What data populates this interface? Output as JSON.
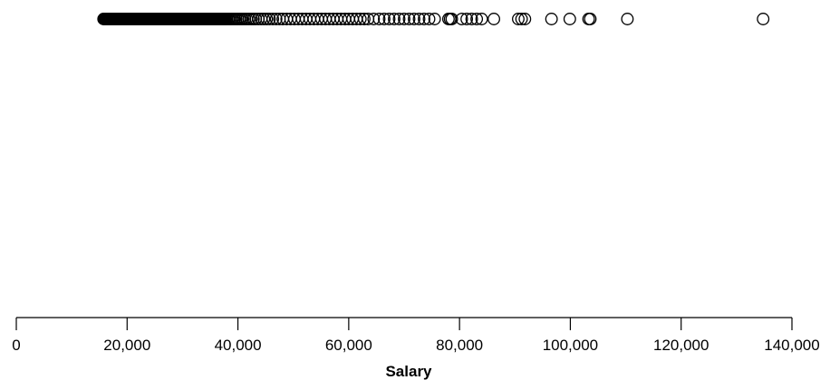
{
  "chart_data": {
    "type": "scatter",
    "title": "",
    "xlabel": "Salary",
    "ylabel": "",
    "xlim": [
      0,
      140000
    ],
    "x_ticks": [
      0,
      20000,
      40000,
      60000,
      80000,
      100000,
      120000,
      140000
    ],
    "x_tick_labels": [
      "0",
      "20,000",
      "40,000",
      "60,000",
      "80,000",
      "100,000",
      "120,000",
      "140,000"
    ],
    "grid": false,
    "legend": "none",
    "marker": "open-circle",
    "colors": {
      "marker_stroke": "#000000",
      "axis": "#000000"
    },
    "series": [
      {
        "x": [
          15750,
          15900,
          16050,
          16200,
          16350,
          16500,
          16650,
          16800,
          16950,
          17100,
          17250,
          17400,
          17550,
          17700,
          17850,
          18000,
          18150,
          18300,
          18450,
          18600,
          18750,
          18900,
          19050,
          19200,
          19350,
          19500,
          19650,
          19800,
          19950,
          20100,
          20250,
          20400,
          20550,
          20700,
          20850,
          21000,
          21150,
          21300,
          21450,
          21600,
          21750,
          21900,
          22050,
          22200,
          22350,
          22500,
          22650,
          22800,
          22950,
          23100,
          23250,
          23400,
          23550,
          23700,
          23850,
          24000,
          24150,
          24300,
          24450,
          24600,
          24750,
          24900,
          25050,
          25200,
          25350,
          25500,
          25650,
          25800,
          25950,
          26100,
          26250,
          26400,
          26550,
          26700,
          26850,
          27000,
          27150,
          27300,
          27450,
          27600,
          27750,
          27900,
          28050,
          28200,
          28350,
          28500,
          28650,
          28800,
          28950,
          29100,
          29250,
          29400,
          29550,
          29700,
          29850,
          30000,
          30150,
          30300,
          30450,
          30600,
          30750,
          30900,
          31050,
          31200,
          31350,
          31500,
          31650,
          31800,
          31950,
          32100,
          32250,
          32400,
          32550,
          32700,
          32850,
          33000,
          33150,
          33300,
          33450,
          33600,
          33750,
          33900,
          34050,
          34200,
          34350,
          34500,
          34650,
          34800,
          34950,
          35100,
          35250,
          35400,
          35550,
          35700,
          35850,
          36000,
          36150,
          36300,
          36450,
          36600,
          36750,
          36900,
          37050,
          37200,
          37350,
          37500,
          37650,
          37800,
          38000,
          38250,
          38500,
          38800,
          39100,
          39400,
          39700,
          40000,
          40300,
          40600,
          40900,
          41250,
          41600,
          42000,
          42400,
          42800,
          43200,
          43700,
          44200,
          44700,
          45200,
          45700,
          46300,
          46900,
          47500,
          48100,
          48800,
          49500,
          50200,
          50900,
          51600,
          52300,
          53000,
          53700,
          54400,
          55100,
          55800,
          56500,
          57200,
          57900,
          58600,
          59300,
          60000,
          60700,
          61400,
          62100,
          62800,
          63500,
          64500,
          65500,
          66400,
          67300,
          68200,
          69100,
          70000,
          70900,
          71800,
          72700,
          73600,
          74500,
          75500,
          78000,
          78300,
          78600,
          80400,
          81300,
          82200,
          83100,
          84000,
          86200,
          90600,
          91200,
          91800,
          96600,
          99900,
          103300,
          103600,
          110300,
          134800
        ],
        "y": [
          0,
          0,
          0,
          0,
          0,
          0,
          0,
          0,
          0,
          0,
          0,
          0,
          0,
          0,
          0,
          0,
          0,
          0,
          0,
          0,
          0,
          0,
          0,
          0,
          0,
          0,
          0,
          0,
          0,
          0,
          0,
          0,
          0,
          0,
          0,
          0,
          0,
          0,
          0,
          0,
          0,
          0,
          0,
          0,
          0,
          0,
          0,
          0,
          0,
          0,
          0,
          0,
          0,
          0,
          0,
          0,
          0,
          0,
          0,
          0,
          0,
          0,
          0,
          0,
          0,
          0,
          0,
          0,
          0,
          0,
          0,
          0,
          0,
          0,
          0,
          0,
          0,
          0,
          0,
          0,
          0,
          0,
          0,
          0,
          0,
          0,
          0,
          0,
          0,
          0,
          0,
          0,
          0,
          0,
          0,
          0,
          0,
          0,
          0,
          0,
          0,
          0,
          0,
          0,
          0,
          0,
          0,
          0,
          0,
          0,
          0,
          0,
          0,
          0,
          0,
          0,
          0,
          0,
          0,
          0,
          0,
          0,
          0,
          0,
          0,
          0,
          0,
          0,
          0,
          0,
          0,
          0,
          0,
          0,
          0,
          0,
          0,
          0,
          0,
          0,
          0,
          0,
          0,
          0,
          0,
          0,
          0,
          0,
          0,
          0,
          0,
          0,
          0,
          0,
          0,
          0,
          0,
          0,
          0,
          0,
          0,
          0,
          0,
          0,
          0,
          0,
          0,
          0,
          0,
          0,
          0,
          0,
          0,
          0,
          0,
          0,
          0,
          0,
          0,
          0,
          0,
          0,
          0,
          0,
          0,
          0,
          0,
          0,
          0,
          0,
          0,
          0,
          0,
          0,
          0,
          0,
          0,
          0,
          0,
          0,
          0,
          0,
          0,
          0,
          0,
          0,
          0,
          0,
          0,
          0,
          0,
          0,
          0,
          0,
          0,
          0,
          0,
          0,
          0,
          0,
          0,
          0,
          0,
          0,
          0,
          0,
          0
        ]
      }
    ]
  }
}
